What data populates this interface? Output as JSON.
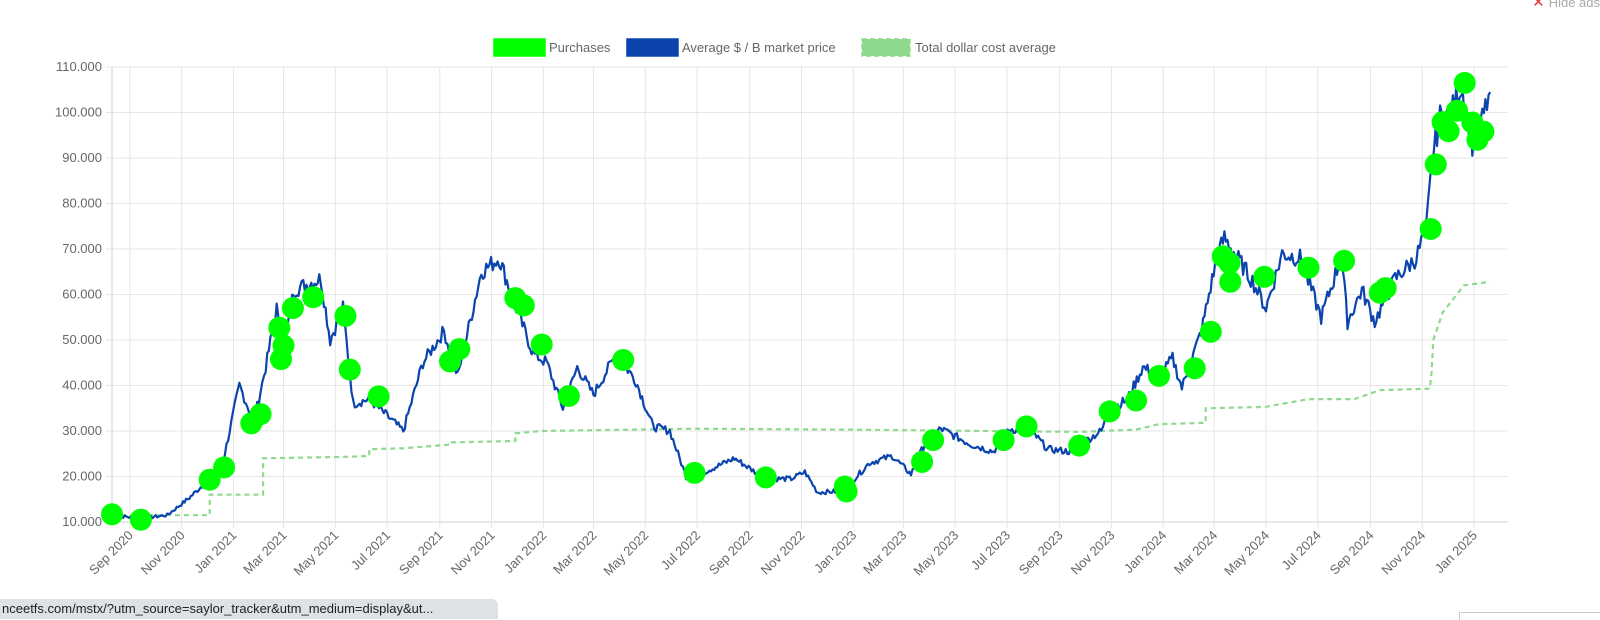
{
  "hide_ads": {
    "label": "Hide ads"
  },
  "status_url": "nceetfs.com/mstx/?utm_source=saylor_tracker&utm_medium=display&ut...",
  "colors": {
    "purchases": "#00ff00",
    "price": "#0b44ad",
    "dca": "#8fd98f",
    "grid": "#e6e6e6"
  },
  "chart_data": {
    "type": "line",
    "legend": [
      {
        "name": "Purchases",
        "kind": "marker"
      },
      {
        "name": "Average $ / B market price",
        "kind": "line"
      },
      {
        "name": "Total dollar cost average",
        "kind": "dashed-line"
      }
    ],
    "legend_placement": "top-center",
    "grid": true,
    "xlim": [
      "2020-08-11",
      "2025-02-10"
    ],
    "ylim": [
      10000,
      110000
    ],
    "y_ticks": [
      "10.000",
      "20.000",
      "30.000",
      "40.000",
      "50.000",
      "60.000",
      "70.000",
      "80.000",
      "90.000",
      "100.000",
      "110.000"
    ],
    "x_ticks": [
      "Sep 2020",
      "Nov 2020",
      "Jan 2021",
      "Mar 2021",
      "May 2021",
      "Jul 2021",
      "Sep 2021",
      "Nov 2021",
      "Jan 2022",
      "Mar 2022",
      "May 2022",
      "Jul 2022",
      "Sep 2022",
      "Nov 2022",
      "Jan 2023",
      "Mar 2023",
      "May 2023",
      "Jul 2023",
      "Sep 2023",
      "Nov 2023",
      "Jan 2024",
      "Mar 2024",
      "May 2024",
      "Jul 2024",
      "Sep 2024",
      "Nov 2024",
      "Jan 2025"
    ],
    "series": [
      {
        "name": "Average $ / B market price",
        "points": [
          [
            "2020-08-11",
            11500
          ],
          [
            "2020-09-14",
            10800
          ],
          [
            "2020-10-15",
            11500
          ],
          [
            "2020-11-10",
            15300
          ],
          [
            "2020-12-01",
            19000
          ],
          [
            "2020-12-20",
            23500
          ],
          [
            "2021-01-08",
            40000
          ],
          [
            "2021-01-25",
            32000
          ],
          [
            "2021-02-08",
            44000
          ],
          [
            "2021-02-21",
            57000
          ],
          [
            "2021-02-28",
            45500
          ],
          [
            "2021-03-13",
            61000
          ],
          [
            "2021-04-14",
            63500
          ],
          [
            "2021-04-25",
            50000
          ],
          [
            "2021-05-10",
            57000
          ],
          [
            "2021-05-22",
            36000
          ],
          [
            "2021-06-10",
            37000
          ],
          [
            "2021-07-20",
            30000
          ],
          [
            "2021-08-12",
            45000
          ],
          [
            "2021-09-06",
            52000
          ],
          [
            "2021-09-22",
            42000
          ],
          [
            "2021-10-20",
            65000
          ],
          [
            "2021-11-10",
            68000
          ],
          [
            "2021-11-30",
            57000
          ],
          [
            "2021-12-20",
            47000
          ],
          [
            "2022-01-05",
            45000
          ],
          [
            "2022-01-24",
            35000
          ],
          [
            "2022-02-10",
            44000
          ],
          [
            "2022-03-01",
            38000
          ],
          [
            "2022-03-28",
            47000
          ],
          [
            "2022-04-20",
            41000
          ],
          [
            "2022-05-10",
            31000
          ],
          [
            "2022-05-30",
            30000
          ],
          [
            "2022-06-18",
            20000
          ],
          [
            "2022-07-10",
            21000
          ],
          [
            "2022-08-14",
            24000
          ],
          [
            "2022-09-20",
            19500
          ],
          [
            "2022-10-20",
            19500
          ],
          [
            "2022-11-05",
            21000
          ],
          [
            "2022-11-20",
            16500
          ],
          [
            "2022-12-20",
            16800
          ],
          [
            "2023-01-20",
            23000
          ],
          [
            "2023-02-16",
            24500
          ],
          [
            "2023-03-10",
            20500
          ],
          [
            "2023-03-28",
            28000
          ],
          [
            "2023-04-14",
            30500
          ],
          [
            "2023-05-20",
            27000
          ],
          [
            "2023-06-15",
            25500
          ],
          [
            "2023-07-05",
            30500
          ],
          [
            "2023-08-01",
            29500
          ],
          [
            "2023-08-18",
            26000
          ],
          [
            "2023-09-12",
            25500
          ],
          [
            "2023-10-20",
            30000
          ],
          [
            "2023-10-30",
            34500
          ],
          [
            "2023-11-20",
            37000
          ],
          [
            "2023-12-08",
            44000
          ],
          [
            "2023-12-28",
            42000
          ],
          [
            "2024-01-12",
            46000
          ],
          [
            "2024-01-23",
            39500
          ],
          [
            "2024-02-15",
            52000
          ],
          [
            "2024-03-04",
            68000
          ],
          [
            "2024-03-13",
            72500
          ],
          [
            "2024-04-15",
            63000
          ],
          [
            "2024-05-01",
            57000
          ],
          [
            "2024-05-20",
            69000
          ],
          [
            "2024-06-10",
            68000
          ],
          [
            "2024-07-05",
            55000
          ],
          [
            "2024-07-29",
            68500
          ],
          [
            "2024-08-05",
            54000
          ],
          [
            "2024-08-22",
            61000
          ],
          [
            "2024-09-06",
            54000
          ],
          [
            "2024-09-30",
            63500
          ],
          [
            "2024-10-25",
            68000
          ],
          [
            "2024-11-06",
            75000
          ],
          [
            "2024-11-13",
            90000
          ],
          [
            "2024-11-22",
            99000
          ],
          [
            "2024-12-05",
            100000
          ],
          [
            "2024-12-17",
            106000
          ],
          [
            "2024-12-30",
            93000
          ],
          [
            "2025-01-07",
            96000
          ],
          [
            "2025-01-20",
            104500
          ]
        ]
      },
      {
        "name": "Total dollar cost average",
        "style": "dashed",
        "points": [
          [
            "2020-08-11",
            11500
          ],
          [
            "2020-12-04",
            11500
          ],
          [
            "2020-12-04",
            16000
          ],
          [
            "2021-02-05",
            16000
          ],
          [
            "2021-02-05",
            24000
          ],
          [
            "2021-05-10",
            24300
          ],
          [
            "2021-06-10",
            24500
          ],
          [
            "2021-06-10",
            26000
          ],
          [
            "2021-07-20",
            26200
          ],
          [
            "2021-09-13",
            27000
          ],
          [
            "2021-09-13",
            27500
          ],
          [
            "2021-11-29",
            27800
          ],
          [
            "2021-11-29",
            29500
          ],
          [
            "2021-12-30",
            30000
          ],
          [
            "2022-06-28",
            30500
          ],
          [
            "2022-12-20",
            30300
          ],
          [
            "2023-09-25",
            29800
          ],
          [
            "2023-11-30",
            30300
          ],
          [
            "2023-12-27",
            31500
          ],
          [
            "2024-02-20",
            31800
          ],
          [
            "2024-02-20",
            35000
          ],
          [
            "2024-04-30",
            35300
          ],
          [
            "2024-06-20",
            37000
          ],
          [
            "2024-08-13",
            37000
          ],
          [
            "2024-09-12",
            39000
          ],
          [
            "2024-11-10",
            39300
          ],
          [
            "2024-11-12",
            43000
          ],
          [
            "2024-11-14",
            50000
          ],
          [
            "2024-11-25",
            56000
          ],
          [
            "2024-12-20",
            62000
          ],
          [
            "2025-01-20",
            62800
          ]
        ]
      },
      {
        "name": "Purchases",
        "style": "marker",
        "points": [
          [
            "2020-08-11",
            11700
          ],
          [
            "2020-09-14",
            10500
          ],
          [
            "2020-12-04",
            19300
          ],
          [
            "2020-12-21",
            22000
          ],
          [
            "2021-01-22",
            31700
          ],
          [
            "2021-02-02",
            33700
          ],
          [
            "2021-02-24",
            52700
          ],
          [
            "2021-02-26",
            45800
          ],
          [
            "2021-03-01",
            48800
          ],
          [
            "2021-03-12",
            57000
          ],
          [
            "2021-04-05",
            59400
          ],
          [
            "2021-05-13",
            55300
          ],
          [
            "2021-05-18",
            43500
          ],
          [
            "2021-06-21",
            37600
          ],
          [
            "2021-09-13",
            45300
          ],
          [
            "2021-09-24",
            48000
          ],
          [
            "2021-11-29",
            59200
          ],
          [
            "2021-12-09",
            57600
          ],
          [
            "2021-12-30",
            49000
          ],
          [
            "2022-01-31",
            37700
          ],
          [
            "2022-04-05",
            45600
          ],
          [
            "2022-06-28",
            20800
          ],
          [
            "2022-09-20",
            19800
          ],
          [
            "2022-12-22",
            17800
          ],
          [
            "2022-12-24",
            16700
          ],
          [
            "2023-03-23",
            23200
          ],
          [
            "2023-04-05",
            28000
          ],
          [
            "2023-06-27",
            28000
          ],
          [
            "2023-07-24",
            31000
          ],
          [
            "2023-09-24",
            26800
          ],
          [
            "2023-10-30",
            34300
          ],
          [
            "2023-11-30",
            36700
          ],
          [
            "2023-12-27",
            42100
          ],
          [
            "2024-02-07",
            43800
          ],
          [
            "2024-02-26",
            51800
          ],
          [
            "2024-03-11",
            68400
          ],
          [
            "2024-03-19",
            66900
          ],
          [
            "2024-03-20",
            62800
          ],
          [
            "2024-04-29",
            63900
          ],
          [
            "2024-06-20",
            65900
          ],
          [
            "2024-08-01",
            67400
          ],
          [
            "2024-09-12",
            60400
          ],
          [
            "2024-09-19",
            61400
          ],
          [
            "2024-11-11",
            74400
          ],
          [
            "2024-11-17",
            88600
          ],
          [
            "2024-11-25",
            97900
          ],
          [
            "2024-12-02",
            95900
          ],
          [
            "2024-12-12",
            100400
          ],
          [
            "2024-12-21",
            106500
          ],
          [
            "2024-12-30",
            97800
          ],
          [
            "2025-01-05",
            94000
          ],
          [
            "2025-01-12",
            95800
          ]
        ]
      }
    ]
  }
}
